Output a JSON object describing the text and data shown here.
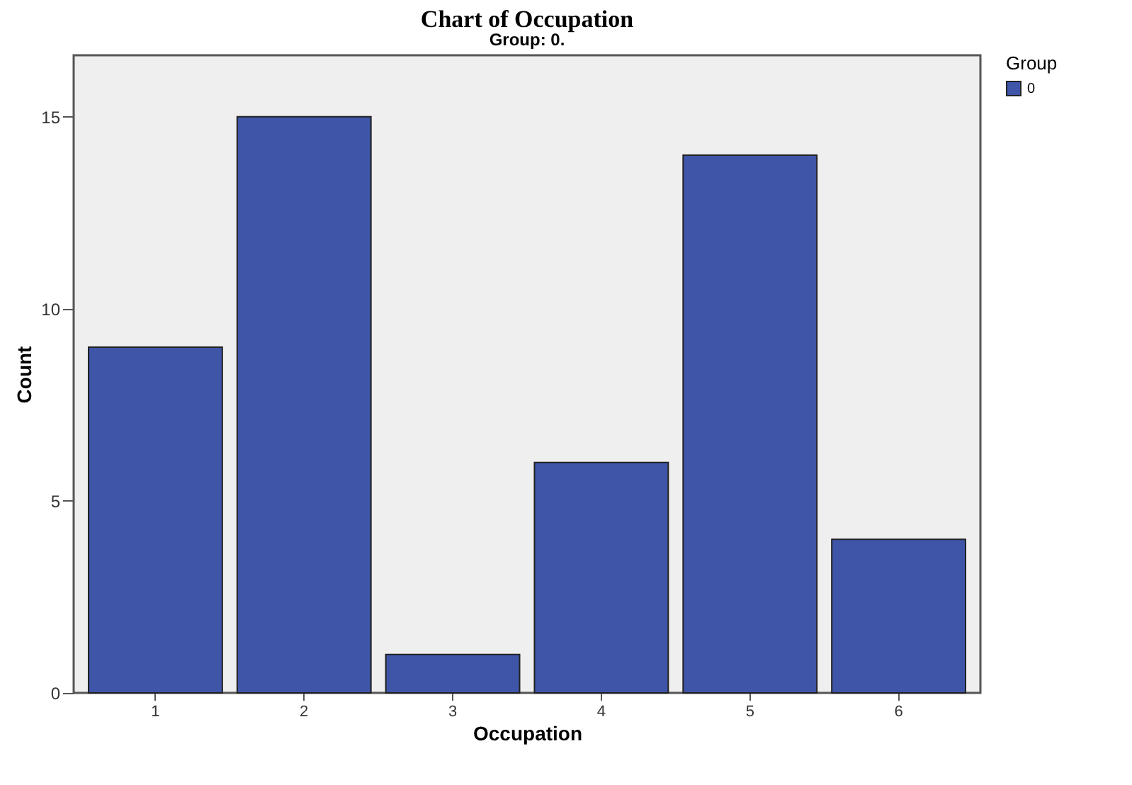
{
  "chart_data": {
    "type": "bar",
    "title": "Chart of Occupation",
    "subtitle": "Group: 0.",
    "xlabel": "Occupation",
    "ylabel": "Count",
    "legend_title": "Group",
    "categories": [
      "1",
      "2",
      "3",
      "4",
      "5",
      "6"
    ],
    "series": [
      {
        "name": "0",
        "color": "#3f55a8",
        "values": [
          9,
          15,
          1,
          6,
          14,
          4
        ]
      }
    ],
    "ylim": [
      0,
      16.6
    ],
    "yticks": [
      0,
      5,
      10,
      15
    ],
    "grid": false,
    "legend": "top right"
  }
}
